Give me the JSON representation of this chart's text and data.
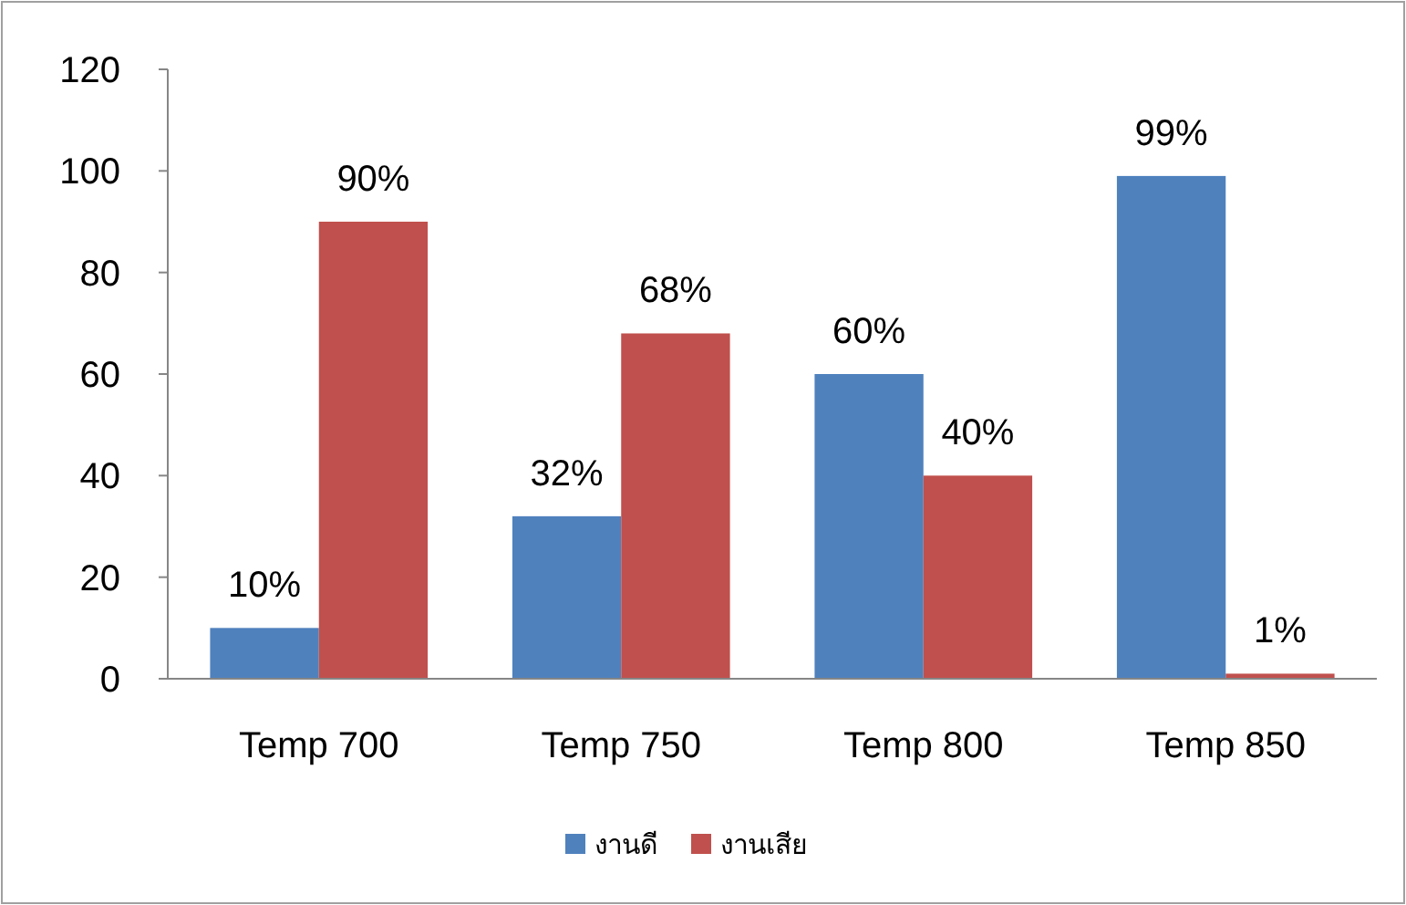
{
  "chart_data": {
    "type": "bar",
    "categories": [
      "Temp 700",
      "Temp 750",
      "Temp 800",
      "Temp 850"
    ],
    "series": [
      {
        "name": "งานดี",
        "color": "#4f81bd",
        "values": [
          10,
          32,
          60,
          99
        ],
        "value_labels": [
          "10%",
          "32%",
          "60%",
          "99%"
        ]
      },
      {
        "name": "งานเสีย",
        "color": "#c0504d",
        "values": [
          90,
          68,
          40,
          1
        ],
        "value_labels": [
          "90%",
          "68%",
          "40%",
          "1%"
        ]
      }
    ],
    "ylim": [
      0,
      120
    ],
    "yticks": [
      0,
      20,
      40,
      60,
      80,
      100,
      120
    ],
    "grid": false,
    "legend": "bottom"
  }
}
